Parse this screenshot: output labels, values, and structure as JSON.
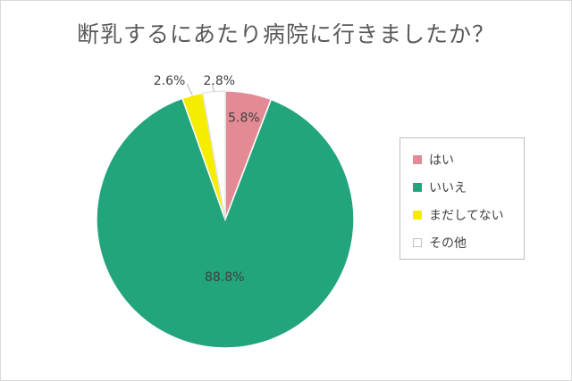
{
  "chart_data": {
    "type": "pie",
    "title": "断乳するにあたり病院に行きましたか？",
    "categories": [
      "はい",
      "いいえ",
      "まだしてない",
      "その他"
    ],
    "values": [
      5.8,
      88.8,
      2.6,
      2.8
    ],
    "value_labels": [
      "5.8%",
      "88.8%",
      "2.6%",
      "2.8%"
    ],
    "colors": [
      "#e38a94",
      "#22a57c",
      "#f5ec00",
      "#ffffff"
    ],
    "start_angle": "12 o'clock",
    "direction": "clockwise",
    "legend_position": "right"
  }
}
